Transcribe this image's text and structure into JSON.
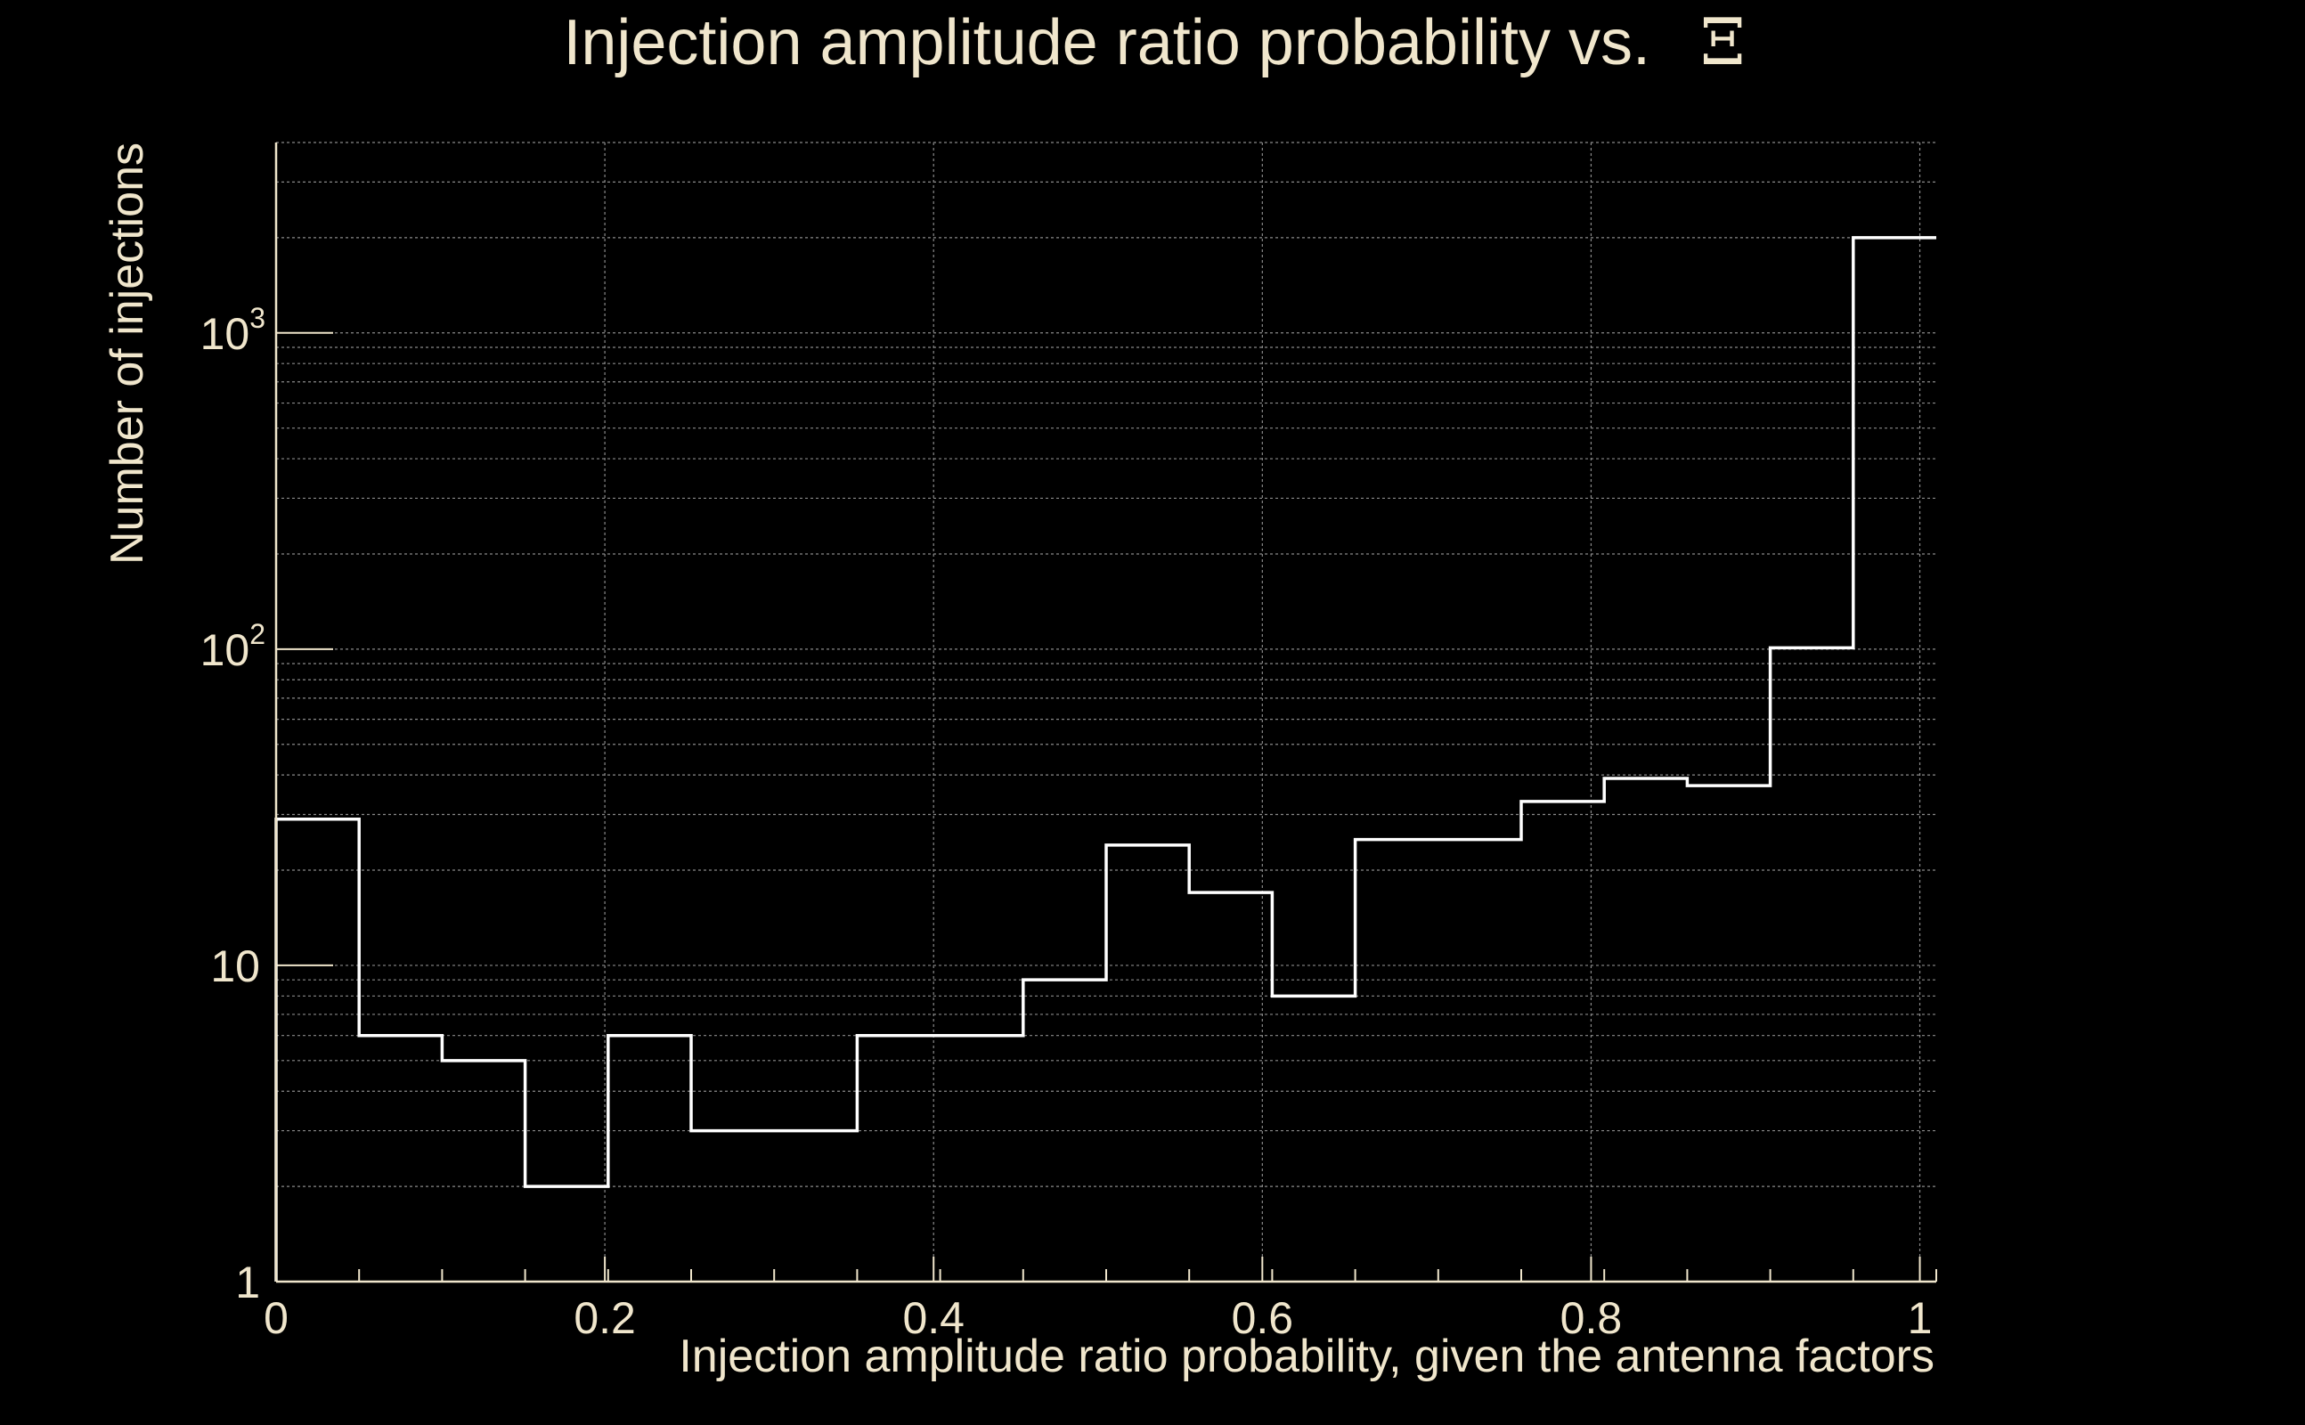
{
  "colors": {
    "background": "#000000",
    "foreground": "#f0e6cc",
    "grid": "#8a8a8a",
    "line": "#ffffff"
  },
  "chart_data": {
    "type": "histogram",
    "title": "Injection amplitude ratio probability vs.",
    "title_symbol": "Ξ",
    "xlabel": "Injection amplitude ratio probability, given the antenna factors",
    "ylabel": "Number of injections",
    "xlim": [
      0,
      1.01
    ],
    "ylim": [
      1,
      4000
    ],
    "yscale": "log",
    "grid": true,
    "x_ticks": [
      {
        "value": 0,
        "label": "0"
      },
      {
        "value": 0.2,
        "label": "0.2"
      },
      {
        "value": 0.4,
        "label": "0.4"
      },
      {
        "value": 0.6,
        "label": "0.6"
      },
      {
        "value": 0.8,
        "label": "0.8"
      },
      {
        "value": 1,
        "label": "1"
      }
    ],
    "y_ticks": [
      {
        "value": 1,
        "base": "1",
        "exp": ""
      },
      {
        "value": 10,
        "base": "10",
        "exp": ""
      },
      {
        "value": 100,
        "base": "10",
        "exp": "2"
      },
      {
        "value": 1000,
        "base": "10",
        "exp": "3"
      }
    ],
    "bin_edges": [
      0,
      0.0505,
      0.101,
      0.1515,
      0.202,
      0.2525,
      0.303,
      0.3535,
      0.404,
      0.4545,
      0.505,
      0.5555,
      0.606,
      0.6565,
      0.707,
      0.7575,
      0.808,
      0.8585,
      0.909,
      0.9595,
      1.01
    ],
    "counts": [
      29,
      6,
      5,
      2,
      6,
      3,
      3,
      6,
      6,
      9,
      24,
      17,
      8,
      25,
      25,
      33,
      39,
      37,
      101,
      2000
    ]
  }
}
